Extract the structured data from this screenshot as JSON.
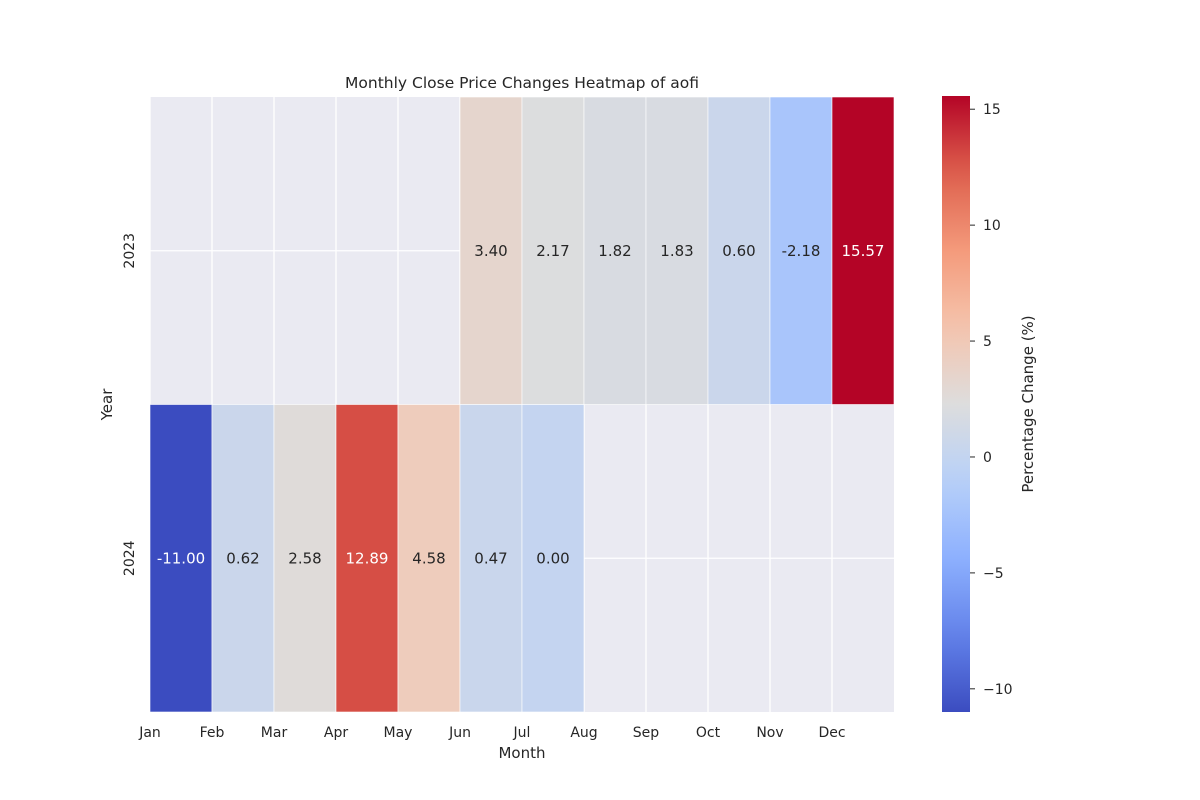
{
  "colors": {
    "figure_bg": "#ffffff",
    "axes_bg": "#eaeaf2",
    "grid": "#ffffff",
    "text": "#262626",
    "cell_border": "#ffffff"
  },
  "chart_data": {
    "type": "heatmap",
    "title": "Monthly Close Price Changes Heatmap of aofi",
    "xlabel": "Month",
    "ylabel": "Year",
    "x_tick_labels": [
      "Jan",
      "Feb",
      "Mar",
      "Apr",
      "May",
      "Jun",
      "Jul",
      "Aug",
      "Sep",
      "Oct",
      "Nov",
      "Dec"
    ],
    "years": [
      "2023",
      "2024"
    ],
    "columns": 12,
    "values": [
      [
        null,
        null,
        null,
        null,
        null,
        3.4,
        2.17,
        1.82,
        1.83,
        0.6,
        -2.18,
        15.57
      ],
      [
        -11.0,
        0.62,
        2.58,
        12.89,
        4.58,
        0.47,
        0.0,
        null,
        null,
        null,
        null,
        null
      ]
    ],
    "labels": [
      [
        "",
        "",
        "",
        "",
        "",
        "3.40",
        "2.17",
        "1.82",
        "1.83",
        "0.60",
        "-2.18",
        "15.57"
      ],
      [
        "-11.00",
        "0.62",
        "2.58",
        "12.89",
        "4.58",
        "0.47",
        "0.00",
        "",
        "",
        "",
        "",
        ""
      ]
    ],
    "colormap": "coolwarm",
    "vmin": -11.0,
    "vmax": 15.57,
    "colorbar": {
      "label": "Percentage Change (%)",
      "ticks": [
        -10,
        -5,
        0,
        5,
        10,
        15
      ],
      "tick_labels": [
        "−10",
        "−5",
        "0",
        "5",
        "10",
        "15"
      ]
    },
    "grid": true,
    "legend": "none"
  }
}
